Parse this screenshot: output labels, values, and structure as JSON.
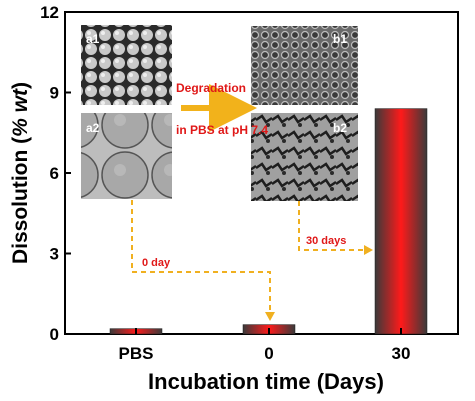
{
  "chart_data": {
    "type": "bar",
    "categories": [
      "PBS",
      "0",
      "30"
    ],
    "values": [
      0.2,
      0.35,
      8.4
    ],
    "xlabel": "Incubation time (Days)",
    "ylabel_main": "Dissolution (",
    "ylabel_unit": "% wt",
    "ylabel_close": ")",
    "ylim": [
      0,
      12
    ],
    "yticks": [
      "0",
      "3",
      "6",
      "9",
      "12"
    ],
    "grid": false,
    "bar_colors": {
      "center": "#ff1a1a",
      "edge": "#3a3a3a"
    }
  },
  "insets": {
    "a1": "a1",
    "a2": "a2",
    "b1": "b1",
    "b2": "b2"
  },
  "annotations": {
    "degradation": "Degradation",
    "in_pbs": "in PBS at pH 7.4",
    "day0": "0 day",
    "day30": "30 days"
  },
  "colors": {
    "arrow_main": "#f2b21b",
    "arrow_dashed": "#f0b020",
    "annotation_text": "#e01818"
  }
}
